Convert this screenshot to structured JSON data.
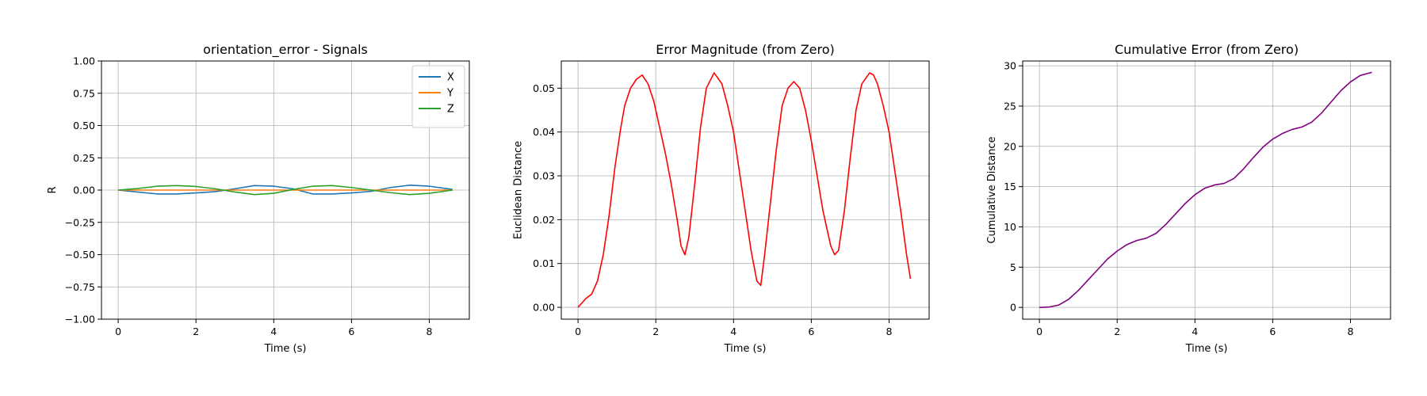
{
  "chart_data": [
    {
      "type": "line",
      "title": "orientation_error - Signals",
      "xlabel": "Time (s)",
      "ylabel": "R",
      "xlim": [
        -0.43,
        9.03
      ],
      "ylim": [
        -1.0,
        1.0
      ],
      "xticks": [
        0,
        2,
        4,
        6,
        8
      ],
      "xtick_labels": [
        "0",
        "2",
        "4",
        "6",
        "8"
      ],
      "yticks": [
        -1.0,
        -0.75,
        -0.5,
        -0.25,
        0.0,
        0.25,
        0.5,
        0.75,
        1.0
      ],
      "ytick_labels": [
        "−1.00",
        "−0.75",
        "−0.50",
        "−0.25",
        "0.00",
        "0.25",
        "0.50",
        "0.75",
        "1.00"
      ],
      "grid": true,
      "legend": "top-right",
      "x": [
        0,
        0.5,
        1.0,
        1.5,
        2.0,
        2.5,
        3.0,
        3.5,
        4.0,
        4.5,
        5.0,
        5.5,
        6.0,
        6.5,
        7.0,
        7.5,
        8.0,
        8.6
      ],
      "series": [
        {
          "name": "X",
          "color": "#1f77b4",
          "values": [
            0,
            -0.015,
            -0.03,
            -0.03,
            -0.022,
            -0.012,
            0.01,
            0.035,
            0.03,
            0.01,
            -0.03,
            -0.03,
            -0.022,
            -0.01,
            0.02,
            0.038,
            0.03,
            0.005
          ]
        },
        {
          "name": "Y",
          "color": "#ff7f0e",
          "values": [
            0,
            0,
            0,
            0,
            0,
            0,
            0,
            0,
            0,
            0,
            0,
            0,
            0,
            0,
            0,
            0,
            0,
            0
          ]
        },
        {
          "name": "Z",
          "color": "#2ca02c",
          "values": [
            0,
            0.012,
            0.03,
            0.035,
            0.028,
            0.01,
            -0.015,
            -0.035,
            -0.025,
            0.005,
            0.03,
            0.035,
            0.02,
            0.0,
            -0.02,
            -0.035,
            -0.025,
            0.0
          ]
        }
      ]
    },
    {
      "type": "line",
      "title": "Error Magnitude (from Zero)",
      "xlabel": "Time (s)",
      "ylabel": "Euclidean Distance",
      "xlim": [
        -0.43,
        9.03
      ],
      "ylim": [
        -0.0027,
        0.0562
      ],
      "xticks": [
        0,
        2,
        4,
        6,
        8
      ],
      "xtick_labels": [
        "0",
        "2",
        "4",
        "6",
        "8"
      ],
      "yticks": [
        0.0,
        0.01,
        0.02,
        0.03,
        0.04,
        0.05
      ],
      "ytick_labels": [
        "0.00",
        "0.01",
        "0.02",
        "0.03",
        "0.04",
        "0.05"
      ],
      "grid": true,
      "series": [
        {
          "name": "",
          "color": "#ff0000",
          "x": [
            0,
            0.1,
            0.2,
            0.35,
            0.5,
            0.65,
            0.8,
            0.95,
            1.1,
            1.2,
            1.35,
            1.5,
            1.65,
            1.8,
            1.95,
            2.1,
            2.25,
            2.4,
            2.55,
            2.65,
            2.75,
            2.85,
            3.0,
            3.15,
            3.3,
            3.5,
            3.7,
            3.85,
            4.0,
            4.15,
            4.3,
            4.45,
            4.6,
            4.7,
            4.8,
            4.95,
            5.1,
            5.25,
            5.4,
            5.55,
            5.7,
            5.85,
            6.0,
            6.15,
            6.3,
            6.5,
            6.6,
            6.7,
            6.85,
            7.0,
            7.15,
            7.3,
            7.5,
            7.6,
            7.7,
            7.85,
            8.0,
            8.15,
            8.3,
            8.45,
            8.55
          ],
          "values": [
            0.0,
            0.001,
            0.002,
            0.003,
            0.006,
            0.012,
            0.021,
            0.032,
            0.041,
            0.046,
            0.05,
            0.052,
            0.053,
            0.051,
            0.047,
            0.041,
            0.035,
            0.028,
            0.02,
            0.014,
            0.012,
            0.016,
            0.028,
            0.041,
            0.05,
            0.0535,
            0.051,
            0.046,
            0.04,
            0.031,
            0.022,
            0.013,
            0.006,
            0.005,
            0.012,
            0.024,
            0.036,
            0.046,
            0.05,
            0.0515,
            0.05,
            0.045,
            0.038,
            0.03,
            0.022,
            0.014,
            0.012,
            0.013,
            0.022,
            0.034,
            0.045,
            0.051,
            0.0535,
            0.053,
            0.051,
            0.046,
            0.04,
            0.031,
            0.022,
            0.012,
            0.0065
          ]
        }
      ]
    },
    {
      "type": "line",
      "title": "Cumulative Error (from Zero)",
      "xlabel": "Time (s)",
      "ylabel": "Cumulative Distance",
      "xlim": [
        -0.43,
        9.03
      ],
      "ylim": [
        -1.46,
        30.6
      ],
      "xticks": [
        0,
        2,
        4,
        6,
        8
      ],
      "xtick_labels": [
        "0",
        "2",
        "4",
        "6",
        "8"
      ],
      "yticks": [
        0,
        5,
        10,
        15,
        20,
        25,
        30
      ],
      "ytick_labels": [
        "0",
        "5",
        "10",
        "15",
        "20",
        "25",
        "30"
      ],
      "grid": true,
      "series": [
        {
          "name": "",
          "color": "#800080",
          "x": [
            0,
            0.25,
            0.5,
            0.75,
            1.0,
            1.25,
            1.5,
            1.75,
            2.0,
            2.25,
            2.5,
            2.75,
            3.0,
            3.25,
            3.5,
            3.75,
            4.0,
            4.25,
            4.5,
            4.75,
            5.0,
            5.25,
            5.5,
            5.75,
            6.0,
            6.25,
            6.5,
            6.75,
            7.0,
            7.25,
            7.5,
            7.75,
            8.0,
            8.25,
            8.55
          ],
          "values": [
            0,
            0.05,
            0.3,
            1.0,
            2.1,
            3.4,
            4.7,
            6.0,
            7.0,
            7.8,
            8.3,
            8.6,
            9.2,
            10.3,
            11.6,
            12.9,
            14.0,
            14.8,
            15.2,
            15.4,
            16.0,
            17.2,
            18.6,
            19.9,
            20.9,
            21.6,
            22.1,
            22.4,
            23.0,
            24.1,
            25.5,
            26.9,
            28.0,
            28.8,
            29.2
          ]
        }
      ]
    }
  ]
}
